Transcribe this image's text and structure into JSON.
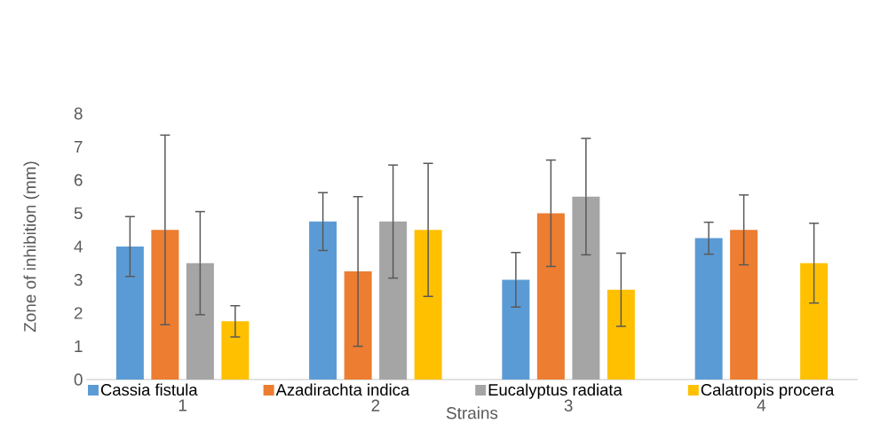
{
  "chart_data": {
    "type": "bar",
    "xlabel": "Strains",
    "ylabel": "Zone of inhibition (mm)",
    "categories": [
      "1",
      "2",
      "3",
      "4"
    ],
    "ylim": [
      0,
      8
    ],
    "yticks": [
      0,
      1,
      2,
      3,
      4,
      5,
      6,
      7,
      8
    ],
    "legend": "bottom",
    "series": [
      {
        "name": "Cassia fistula",
        "color": "#5b9bd5",
        "values": [
          4.0,
          4.75,
          3.0,
          4.25
        ],
        "errors": [
          0.9,
          0.87,
          0.82,
          0.48
        ]
      },
      {
        "name": "Azadirachta indica",
        "color": "#ed7d31",
        "values": [
          4.5,
          3.25,
          5.0,
          4.5
        ],
        "errors": [
          2.85,
          2.25,
          1.6,
          1.05
        ]
      },
      {
        "name": "Eucalyptus radiata",
        "color": "#a5a5a5",
        "values": [
          3.5,
          4.75,
          5.5,
          0
        ],
        "errors": [
          1.55,
          1.7,
          1.75,
          null
        ]
      },
      {
        "name": "Calatropis procera",
        "color": "#ffc000",
        "values": [
          1.75,
          4.5,
          2.7,
          3.5
        ],
        "errors": [
          0.47,
          2.0,
          1.1,
          1.2
        ]
      }
    ]
  }
}
